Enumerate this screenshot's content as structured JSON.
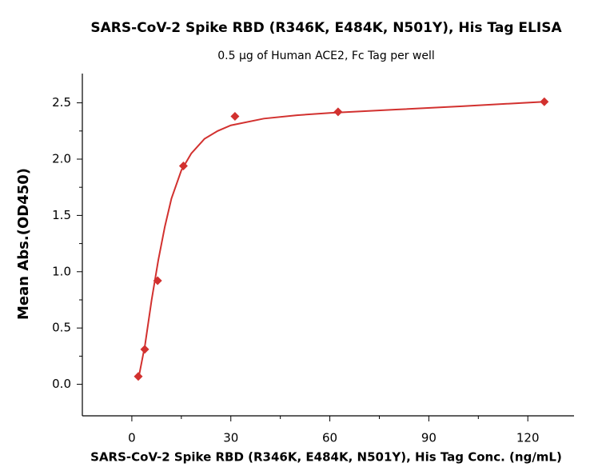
{
  "chart_data": {
    "type": "scatter",
    "title": "SARS-CoV-2 Spike RBD (R346K, E484K, N501Y), His Tag ELISA",
    "subtitle": "0.5 μg of Human ACE2, Fc Tag per well",
    "xlabel": "SARS-CoV-2 Spike RBD (R346K, E484K, N501Y), His Tag Conc. (ng/mL)",
    "ylabel": "Mean Abs.(OD450)",
    "series": [
      {
        "color": "#d2312f",
        "marker": "diamond",
        "x": [
          1.953,
          3.906,
          7.813,
          15.625,
          31.25,
          62.5,
          125
        ],
        "values": [
          0.07,
          0.31,
          0.92,
          1.94,
          2.38,
          2.42,
          2.51
        ]
      },
      {
        "color": "#d2312f",
        "marker": "line",
        "x": [
          2,
          4,
          6,
          8,
          10,
          12,
          15,
          18,
          22,
          26,
          30,
          40,
          50,
          60,
          80,
          100,
          125
        ],
        "values": [
          0.05,
          0.35,
          0.75,
          1.1,
          1.4,
          1.65,
          1.9,
          2.05,
          2.18,
          2.25,
          2.3,
          2.36,
          2.39,
          2.41,
          2.44,
          2.47,
          2.51
        ]
      }
    ],
    "xlim": [
      -15,
      134
    ],
    "xticks": [
      0,
      30,
      60,
      90,
      120
    ],
    "xminor": [
      15,
      45,
      75,
      105
    ],
    "ylim": [
      -0.28,
      2.76
    ],
    "yticks": [
      {
        "value": 0,
        "label": "0.0"
      },
      {
        "value": 0.5,
        "label": "0.5"
      },
      {
        "value": 1,
        "label": "1.0"
      },
      {
        "value": 1.5,
        "label": "1.5"
      },
      {
        "value": 2,
        "label": "2.0"
      },
      {
        "value": 2.5,
        "label": "2.5"
      }
    ],
    "yminor": [
      0.25,
      0.75,
      1.25,
      1.75,
      2.25
    ],
    "grid": false
  }
}
